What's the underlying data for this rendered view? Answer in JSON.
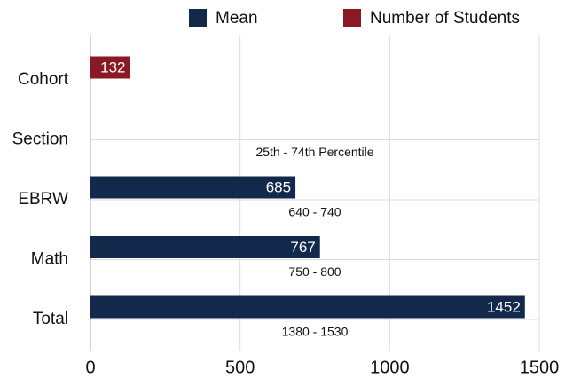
{
  "chart_data": {
    "type": "hbar",
    "categories": [
      "Cohort",
      "Section",
      "EBRW",
      "Math",
      "Total"
    ],
    "series": [
      {
        "name": "Mean",
        "color": "#13294b",
        "values": [
          null,
          null,
          685,
          767,
          1452
        ]
      },
      {
        "name": "Number of Students",
        "color": "#8a1923",
        "values": [
          132,
          null,
          null,
          null,
          null
        ]
      }
    ],
    "range_labels": [
      null,
      "25th - 74th Percentile",
      "640 - 740",
      "750 - 800",
      "1380 - 1530"
    ],
    "xlim": [
      0,
      1500
    ],
    "xticks": [
      0,
      500,
      1000,
      1500
    ],
    "grid": true,
    "legend": "top"
  }
}
